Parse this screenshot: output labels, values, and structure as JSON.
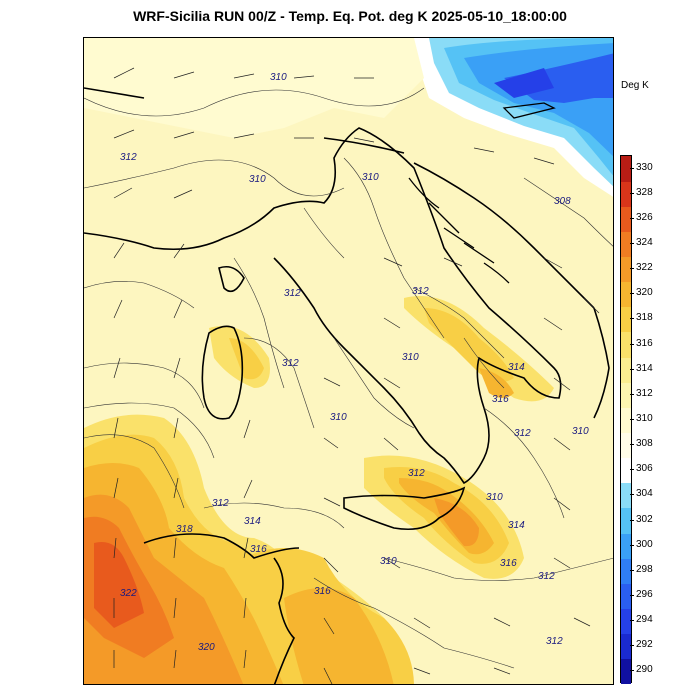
{
  "title": "WRF-Sicilia RUN 00/Z - Temp. Eq. Pot. deg K 2025-05-10_18:00:00",
  "legend": {
    "units": "Deg K",
    "ticks": [
      "290",
      "292",
      "294",
      "296",
      "298",
      "300",
      "302",
      "304",
      "306",
      "308",
      "310",
      "312",
      "314",
      "316",
      "318",
      "320",
      "322",
      "324",
      "326",
      "328",
      "330"
    ],
    "colors": [
      "#1010a0",
      "#1a2ad0",
      "#2540e8",
      "#2a5ef0",
      "#2f7ef5",
      "#3aa0f6",
      "#55c2f5",
      "#8adcf7",
      "#ffffff",
      "#fffde8",
      "#fffbd0",
      "#fdf6b0",
      "#fbee90",
      "#fae16a",
      "#f8cf45",
      "#f6b530",
      "#f49a28",
      "#f07c22",
      "#e85a1d",
      "#d8351a",
      "#b81d15"
    ]
  },
  "contour_labels": [
    "310",
    "312",
    "310",
    "310",
    "308",
    "312",
    "310",
    "312",
    "314",
    "316",
    "312",
    "310",
    "310",
    "312",
    "310",
    "314",
    "316",
    "312",
    "312",
    "312",
    "314",
    "316",
    "318",
    "310",
    "316",
    "322",
    "320",
    "312"
  ],
  "colors": {
    "cold_dark": "#1a3fd8",
    "cold_mid": "#3aa0f6",
    "cold_light": "#8adcf7",
    "neutral": "#ffffff",
    "pale": "#fdf6c0",
    "yellow": "#fae16a",
    "gold": "#f8cf45",
    "orange": "#f49a28",
    "red_orange": "#e85a1d",
    "red": "#d8351a"
  }
}
